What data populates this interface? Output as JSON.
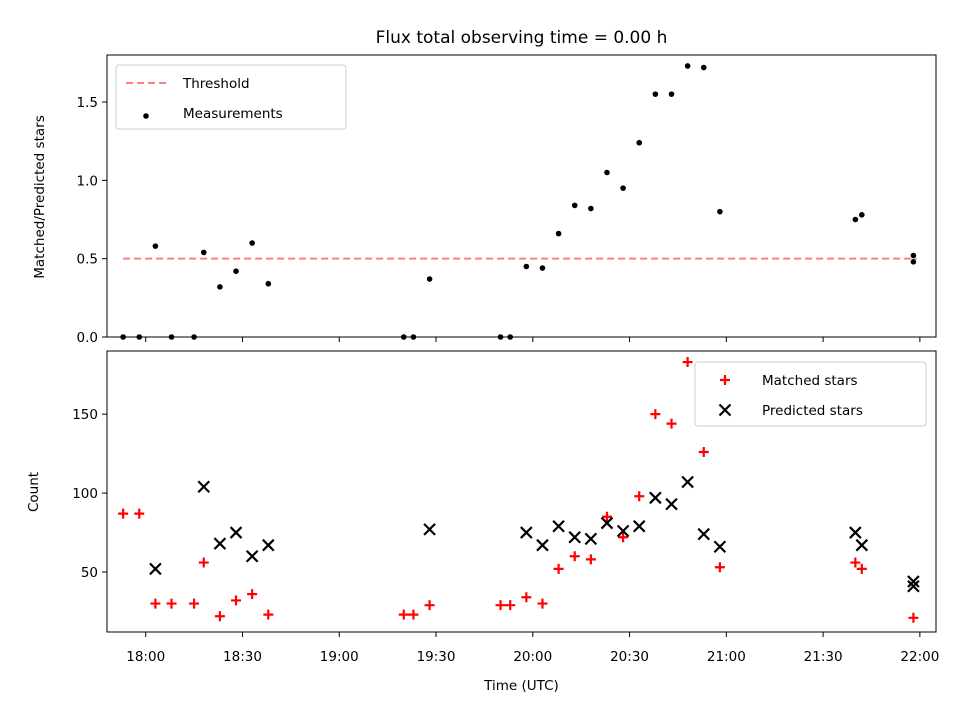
{
  "chart_data": [
    {
      "type": "scatter",
      "title": "Flux total observing time = 0.00 h",
      "xlabel": "",
      "ylabel": "Matched/Predicted stars",
      "x_ticks": [
        "18:00",
        "18:30",
        "19:00",
        "19:30",
        "20:00",
        "20:30",
        "21:00",
        "21:30",
        "22:00"
      ],
      "y_ticks": [
        "0.0",
        "0.5",
        "1.0",
        "1.5"
      ],
      "xlim": [
        "17:48",
        "22:05"
      ],
      "ylim": [
        0,
        1.8
      ],
      "legend_position": "top-left",
      "threshold": {
        "name": "Threshold",
        "value": 0.5,
        "x_range": [
          "17:53",
          "21:59"
        ],
        "color": "#ff7f7f",
        "style": "dashed"
      },
      "series": [
        {
          "name": "Measurements",
          "marker": "dot",
          "color": "#000000",
          "x": [
            "17:53",
            "17:58",
            "18:03",
            "18:08",
            "18:15",
            "18:18",
            "18:23",
            "18:28",
            "18:33",
            "18:38",
            "19:20",
            "19:23",
            "19:28",
            "19:50",
            "19:53",
            "19:58",
            "20:03",
            "20:08",
            "20:13",
            "20:18",
            "20:23",
            "20:28",
            "20:33",
            "20:38",
            "20:43",
            "20:48",
            "20:53",
            "20:58",
            "21:40",
            "21:42",
            "21:58",
            "21:58"
          ],
          "y": [
            0,
            0,
            0.58,
            0,
            0,
            0.54,
            0.32,
            0.42,
            0.6,
            0.34,
            0,
            0,
            0.37,
            0,
            0,
            0.45,
            0.44,
            0.66,
            0.84,
            0.82,
            1.05,
            0.95,
            1.24,
            1.55,
            1.55,
            1.73,
            1.72,
            0.8,
            0.75,
            0.78,
            0.48,
            0.52
          ]
        }
      ]
    },
    {
      "type": "scatter",
      "title": "",
      "xlabel": "Time (UTC)",
      "ylabel": "Count",
      "x_ticks": [
        "18:00",
        "18:30",
        "19:00",
        "19:30",
        "20:00",
        "20:30",
        "21:00",
        "21:30",
        "22:00"
      ],
      "y_ticks": [
        "50",
        "100",
        "150"
      ],
      "xlim": [
        "17:48",
        "22:05"
      ],
      "ylim": [
        12,
        190
      ],
      "legend_position": "top-right",
      "series": [
        {
          "name": "Matched stars",
          "marker": "plus",
          "color": "#ff0000",
          "x": [
            "17:53",
            "17:58",
            "18:03",
            "18:08",
            "18:15",
            "18:18",
            "18:23",
            "18:28",
            "18:33",
            "18:38",
            "19:20",
            "19:23",
            "19:28",
            "19:50",
            "19:53",
            "19:58",
            "20:03",
            "20:08",
            "20:13",
            "20:18",
            "20:23",
            "20:28",
            "20:33",
            "20:38",
            "20:43",
            "20:48",
            "20:53",
            "20:58",
            "21:40",
            "21:42",
            "21:58"
          ],
          "y": [
            87,
            87,
            30,
            30,
            30,
            56,
            22,
            32,
            36,
            23,
            23,
            23,
            29,
            29,
            29,
            34,
            30,
            52,
            60,
            58,
            85,
            72,
            98,
            150,
            144,
            183,
            126,
            53,
            56,
            52,
            21
          ]
        },
        {
          "name": "Predicted stars",
          "marker": "x",
          "color": "#000000",
          "x": [
            "18:03",
            "18:18",
            "18:23",
            "18:28",
            "18:33",
            "18:38",
            "19:28",
            "19:58",
            "20:03",
            "20:08",
            "20:13",
            "20:18",
            "20:23",
            "20:28",
            "20:33",
            "20:38",
            "20:43",
            "20:48",
            "20:53",
            "20:58",
            "21:40",
            "21:42",
            "21:58",
            "21:58"
          ],
          "y": [
            52,
            104,
            68,
            75,
            60,
            67,
            77,
            75,
            67,
            79,
            72,
            71,
            81,
            76,
            79,
            97,
            93,
            107,
            74,
            66,
            75,
            67,
            41,
            44
          ]
        }
      ]
    }
  ]
}
